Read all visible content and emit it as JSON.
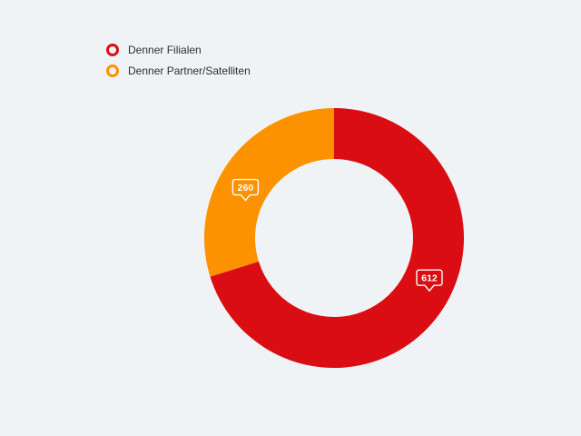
{
  "background_color": "#f0f3f5",
  "legend": {
    "items": [
      {
        "label": "Denner Filialen",
        "color": "#d90d12"
      },
      {
        "label": "Denner Partner/Satelliten",
        "color": "#fc9200"
      }
    ]
  },
  "chart_data": {
    "type": "pie",
    "donut": true,
    "categories": [
      "Denner Filialen",
      "Denner Partner/Satelliten"
    ],
    "values": [
      612,
      260
    ],
    "value_labels": [
      "612",
      "260"
    ],
    "colors": [
      "#d90d12",
      "#fc9200"
    ],
    "total": 872,
    "start_angle": "top",
    "direction": "clockwise",
    "legend_position": "top-left",
    "label_style": "white-outlined-speech-bubble-on-slice",
    "title": "",
    "inner_radius_ratio": 0.61
  }
}
